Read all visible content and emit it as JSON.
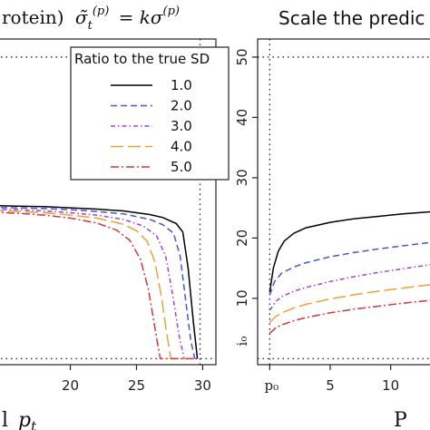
{
  "chart_data": [
    {
      "type": "line",
      "title_prefix": "rotein)",
      "title_math": "σ̃",
      "title_sub": "t",
      "title_sup": "(p)",
      "title_rest": "= kσ",
      "title_rest_sup": "(p)",
      "xlabel_prefix": "l",
      "xlabel_math": "p",
      "xlabel_sub": "t",
      "ylabel": "",
      "xlim": [
        14,
        31
      ],
      "ylim": [
        -1,
        53
      ],
      "x_ticks": [
        "20",
        "25",
        "30"
      ],
      "ref_lines": {
        "vertical_x": 29.8,
        "horizontal_y": [
          50,
          0
        ]
      },
      "legend": {
        "title": "Ratio to the true SD",
        "position": "top-right",
        "entries": [
          "1.0",
          "2.0",
          "3.0",
          "4.0",
          "5.0"
        ]
      },
      "series": [
        {
          "ratio": "1.0",
          "color": "#000000",
          "dash": "",
          "x": [
            14,
            16,
            18,
            20,
            22,
            24,
            26,
            27,
            28,
            28.5,
            28.9,
            29.3,
            29.6
          ],
          "y": [
            25.4,
            25.3,
            25.2,
            25.0,
            24.8,
            24.5,
            23.9,
            23.4,
            22.4,
            21.0,
            15,
            6,
            0
          ]
        },
        {
          "ratio": "2.0",
          "color": "#4a58c8",
          "dash": "7,4",
          "x": [
            14,
            16,
            18,
            20,
            22,
            24,
            26,
            27,
            27.8,
            28.3,
            28.7,
            29.1,
            29.4
          ],
          "y": [
            25.1,
            25.0,
            24.9,
            24.7,
            24.4,
            24.0,
            23.1,
            22.2,
            20.8,
            17,
            10,
            3,
            0
          ]
        },
        {
          "ratio": "3.0",
          "color": "#a040e0",
          "dash": "5,3,1.5,3",
          "x": [
            14,
            16,
            18,
            20,
            22,
            24,
            25.5,
            26.5,
            27.2,
            27.7,
            28.2,
            28.6
          ],
          "y": [
            24.8,
            24.7,
            24.5,
            24.2,
            23.8,
            23.1,
            22.0,
            20.4,
            17,
            11,
            4,
            0
          ]
        },
        {
          "ratio": "4.0",
          "color": "#e8a13c",
          "dash": "14,5",
          "x": [
            14,
            16,
            18,
            20,
            22,
            24,
            25,
            25.8,
            26.4,
            26.9,
            27.3,
            27.6,
            29.6
          ],
          "y": [
            24.6,
            24.4,
            24.2,
            23.8,
            23.3,
            22.3,
            21.2,
            19.5,
            16,
            10,
            4,
            0,
            0
          ]
        },
        {
          "ratio": "5.0",
          "color": "#d0383c",
          "dash": "9,3,2,3",
          "x": [
            14,
            16,
            18,
            20,
            22,
            23.5,
            24.5,
            25.3,
            25.9,
            26.4,
            26.8,
            29.6
          ],
          "y": [
            24.3,
            24.1,
            23.8,
            23.3,
            22.5,
            21.3,
            19.6,
            16.5,
            11.5,
            5,
            0,
            0
          ]
        }
      ]
    },
    {
      "type": "line",
      "title": "Scale the predic",
      "xlabel": "P",
      "ylabel": "i₀",
      "xlim": [
        -1,
        14
      ],
      "ylim": [
        -1,
        53
      ],
      "x_tick_first": "p₀",
      "x_ticks": [
        "5",
        "10"
      ],
      "y_ticks": [
        "10",
        "20",
        "30",
        "40",
        "50"
      ],
      "ref_lines": {
        "vertical_x": 0,
        "horizontal_y": [
          50,
          0
        ]
      },
      "series": [
        {
          "ratio": "1.0",
          "color": "#000000",
          "dash": "",
          "x": [
            0,
            0.3,
            0.7,
            1.2,
            2,
            3,
            5,
            7,
            9,
            11,
            13,
            14
          ],
          "y": [
            11,
            15,
            17.8,
            19.5,
            20.8,
            21.7,
            22.6,
            23.2,
            23.6,
            24.0,
            24.3,
            24.5
          ]
        },
        {
          "ratio": "2.0",
          "color": "#4a58c8",
          "dash": "7,4",
          "x": [
            0,
            0.4,
            1,
            2,
            3,
            5,
            7,
            9,
            11,
            13,
            14
          ],
          "y": [
            10.5,
            12.8,
            14.2,
            15.2,
            15.9,
            16.9,
            17.6,
            18.2,
            18.7,
            19.2,
            19.4
          ]
        },
        {
          "ratio": "3.0",
          "color": "#a040e0",
          "dash": "5,3,1.5,3",
          "x": [
            0,
            0.5,
            1,
            2,
            3,
            5,
            7,
            9,
            11,
            13,
            14
          ],
          "y": [
            8,
            9.5,
            10.3,
            11.2,
            11.8,
            12.8,
            13.6,
            14.3,
            14.9,
            15.5,
            15.8
          ]
        },
        {
          "ratio": "4.0",
          "color": "#e8a13c",
          "dash": "14,5",
          "x": [
            0,
            0.5,
            1,
            2,
            3,
            5,
            7,
            9,
            11,
            13,
            14
          ],
          "y": [
            6,
            7.0,
            7.6,
            8.4,
            9.0,
            9.9,
            10.6,
            11.2,
            11.7,
            12.2,
            12.4
          ]
        },
        {
          "ratio": "5.0",
          "color": "#d0383c",
          "dash": "9,3,2,3",
          "x": [
            0,
            0.5,
            1,
            2,
            3,
            5,
            7,
            9,
            11,
            13,
            14
          ],
          "y": [
            4.2,
            5.1,
            5.6,
            6.3,
            6.8,
            7.6,
            8.2,
            8.7,
            9.2,
            9.6,
            9.8
          ]
        }
      ]
    }
  ]
}
